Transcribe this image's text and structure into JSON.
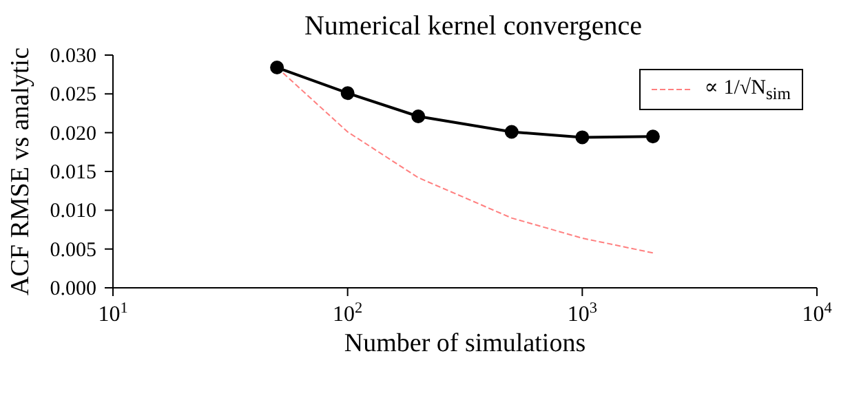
{
  "chart_data": {
    "type": "line",
    "title": "Numerical kernel convergence",
    "xlabel": "Number of simulations",
    "ylabel": "ACF RMSE vs analytic",
    "log": "x",
    "xlim": [
      10,
      10000
    ],
    "xticks": [
      {
        "value": 10,
        "label": "10$^{1}$"
      },
      {
        "value": 100,
        "label": "10$^{2}$"
      },
      {
        "value": 1000,
        "label": "10$^{3}$"
      },
      {
        "value": 10000,
        "label": "10$^{4}$"
      }
    ],
    "ylim": [
      0,
      0.03
    ],
    "yticks": [
      {
        "value": 0,
        "label": "0.000"
      },
      {
        "value": 0.005,
        "label": "0.005"
      },
      {
        "value": 0.01,
        "label": "0.010"
      },
      {
        "value": 0.015,
        "label": "0.015"
      },
      {
        "value": 0.02,
        "label": "0.020"
      },
      {
        "value": 0.025,
        "label": "0.025"
      },
      {
        "value": 0.03,
        "label": "0.030"
      }
    ],
    "grid": false,
    "legend": "top right",
    "series": [
      {
        "color": "#000000",
        "marker": "circle",
        "line_style": "solid",
        "x": [
          50,
          100,
          200,
          500,
          1000,
          2000
        ],
        "values": [
          0.0284,
          0.0251,
          0.0221,
          0.0201,
          0.0194,
          0.0195
        ]
      },
      {
        "name": "∝ 1/√N$_{sim}$",
        "color": "#ff7f7f",
        "marker": "none",
        "line_style": "dashed",
        "x": [
          50,
          100,
          200,
          500,
          1000,
          2000
        ],
        "values": [
          0.0284,
          0.0201,
          0.0142,
          0.009,
          0.0064,
          0.0045
        ]
      }
    ]
  }
}
